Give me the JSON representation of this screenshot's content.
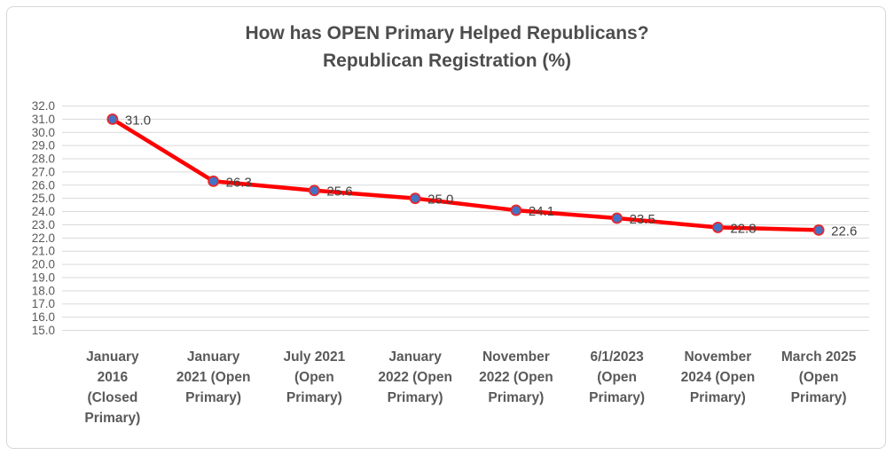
{
  "chart": {
    "title_line1": "How has OPEN Primary Helped Republicans?",
    "title_line2": "Republican Registration (%)"
  },
  "chart_data": {
    "type": "line",
    "title": "How has OPEN Primary Helped Republicans? Republican Registration (%)",
    "categories": [
      "January 2016 (Closed Primary)",
      "January 2021 (Open Primary)",
      "July 2021 (Open Primary)",
      "January 2022 (Open Primary)",
      "November 2022 (Open Primary)",
      "6/1/2023 (Open Primary)",
      "November 2024 (Open Primary)",
      "March 2025 (Open Primary)"
    ],
    "category_tick_lines": [
      [
        "January",
        "2016",
        "(Closed",
        "Primary)"
      ],
      [
        "January",
        "2021 (Open",
        "Primary)"
      ],
      [
        "July 2021",
        "(Open",
        "Primary)"
      ],
      [
        "January",
        "2022 (Open",
        "Primary)"
      ],
      [
        "November",
        "2022  (Open",
        "Primary)"
      ],
      [
        "6/1/2023",
        "(Open",
        "Primary)"
      ],
      [
        "November",
        "2024 (Open",
        "Primary)"
      ],
      [
        "March 2025",
        "(Open",
        "Primary)"
      ]
    ],
    "values": [
      31.0,
      26.3,
      25.6,
      25.0,
      24.1,
      23.5,
      22.8,
      22.6
    ],
    "data_labels": [
      "31.0",
      "26.3",
      "25.6",
      "25.0",
      "24.1",
      "23.5",
      "22.8",
      "22.6"
    ],
    "xlabel": "",
    "ylabel": "",
    "ylim": [
      15.0,
      32.0
    ],
    "ytick_step": 1.0,
    "ytick_decimals": 1,
    "grid": true,
    "legend": "none",
    "line_color": "#ff0000",
    "marker_fill": "#4472c4",
    "marker_stroke": "#e8272c",
    "gridline_color": "#d9d9d9",
    "axis_label_color": "#595959",
    "data_label_color": "#404040"
  }
}
